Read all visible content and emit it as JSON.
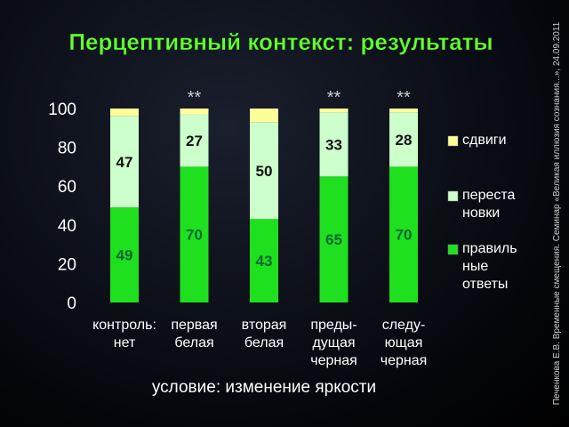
{
  "chart_data": {
    "type": "stacked_bar",
    "title": "Перцептивный контекст: результаты",
    "x_label": "условие: изменение яркости",
    "side_note": "Печенкова Е.В. Временные смещения. Семинар «Великая иллюзия сознания...», 24.09.2011",
    "categories": [
      "контроль:\nнет",
      "первая\nбелая",
      "вторая\nбелая",
      "преды-\nдущая\nчерная",
      "следу-\nющая\nчерная"
    ],
    "annotations": [
      null,
      "**",
      null,
      "**",
      "**"
    ],
    "series": [
      {
        "name": "правиль\nные\nответы",
        "color": "#1ee01e",
        "labels": true,
        "values": [
          49,
          70,
          43,
          65,
          70
        ]
      },
      {
        "name": "переста\nновки",
        "color": "#ccffcc",
        "labels": true,
        "values": [
          47,
          27,
          50,
          33,
          28
        ]
      },
      {
        "name": "сдвиги",
        "color": "#ffff99",
        "labels": false,
        "values": [
          4,
          3,
          7,
          2,
          2
        ]
      }
    ],
    "ylim": [
      0,
      100
    ],
    "yticks": [
      0,
      20,
      40,
      60,
      80,
      100
    ],
    "grid": false
  }
}
